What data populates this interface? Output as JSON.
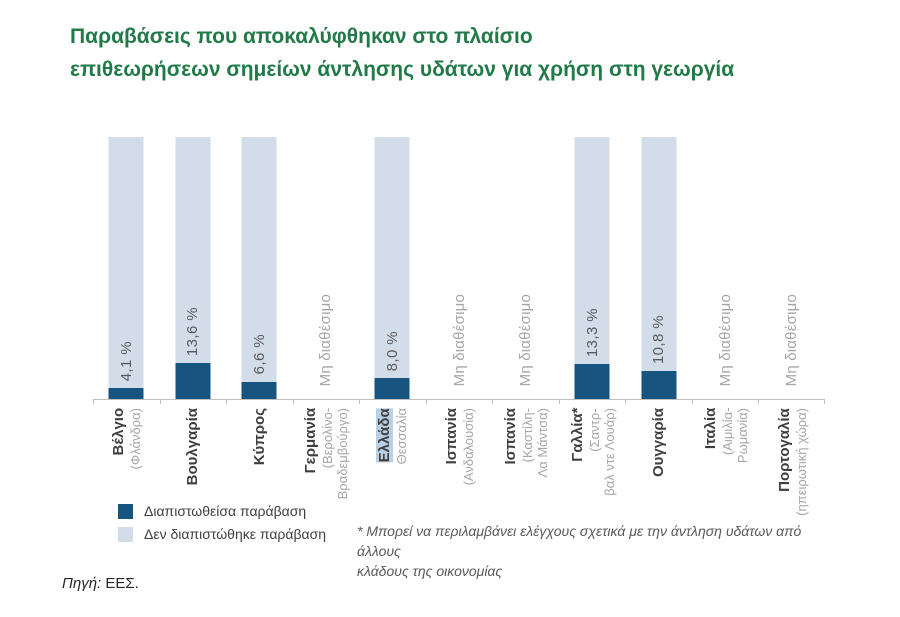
{
  "title": {
    "line1": "Παραβάσεις που αποκαλύφθηκαν στο πλαίσιο",
    "line2": "επιθεωρήσεων σημείων άντλησης υδάτων για χρήση στη γεωργία"
  },
  "chart_data": {
    "type": "bar",
    "subtype": "100-percent-stacked-column",
    "title": "Παραβάσεις που αποκαλύφθηκαν στο πλαίσιο επιθεωρήσεων σημείων άντλησης υδάτων για χρήση στη γεωργία",
    "ylim": [
      0,
      100
    ],
    "grid": false,
    "legend_position": "bottom-left",
    "na_label": "Μη διαθέσιμο",
    "categories": [
      "Βέλγιο (Φλάνδρα)",
      "Βουλγαρία",
      "Κύπρος",
      "Γερμανία (Βερολίνο-Βραδεμβούργο)",
      "Ελλάδα Θεσσαλία",
      "Ισπανία (Ανδαλουσία)",
      "Ισπανία (Καστίλη-Λα Μάντσα)",
      "Γαλλία* (Σαντρ-βαλ ντε Λουάρ)",
      "Ουγγαρία",
      "Ιταλία (Αιμιλία-Ρωμανία)",
      "Πορτογαλία (ηπειρωτική χώρα)"
    ],
    "series": [
      {
        "name": "Διαπιστωθείσα παράβαση",
        "color": "#175480",
        "values": [
          4.1,
          13.6,
          6.6,
          null,
          8.0,
          null,
          null,
          13.3,
          10.8,
          null,
          null
        ]
      },
      {
        "name": "Δεν διαπιστώθηκε παράβαση",
        "color": "#d3dde9",
        "values": [
          95.9,
          86.4,
          93.4,
          null,
          92.0,
          null,
          null,
          86.7,
          89.2,
          null,
          null
        ]
      }
    ],
    "columns": [
      {
        "country": "Βέλγιο",
        "region_lines": [
          "(Φλάνδρα)"
        ],
        "value": 4.1,
        "value_label": "4,1 %",
        "highlight": false
      },
      {
        "country": "Βουλγαρία",
        "region_lines": [],
        "value": 13.6,
        "value_label": "13,6 %",
        "highlight": false
      },
      {
        "country": "Κύπρος",
        "region_lines": [],
        "value": 6.6,
        "value_label": "6,6 %",
        "highlight": false
      },
      {
        "country": "Γερμανία",
        "region_lines": [
          "(Βερολίνο-",
          "Βραδεμβούργο)"
        ],
        "value": null,
        "value_label": null,
        "highlight": false
      },
      {
        "country": "Ελλάδα",
        "region_lines": [
          "Θεσσαλία"
        ],
        "value": 8.0,
        "value_label": "8,0 %",
        "highlight": true
      },
      {
        "country": "Ισπανία",
        "region_lines": [
          "(Ανδαλουσία)"
        ],
        "value": null,
        "value_label": null,
        "highlight": false
      },
      {
        "country": "Ισπανία",
        "region_lines": [
          "(Καστίλη-",
          "Λα Μάντσα)"
        ],
        "value": null,
        "value_label": null,
        "highlight": false
      },
      {
        "country": "Γαλλία*",
        "region_lines": [
          "(Σαντρ-",
          "βαλ ντε Λουάρ)"
        ],
        "value": 13.3,
        "value_label": "13,3 %",
        "highlight": false
      },
      {
        "country": "Ουγγαρία",
        "region_lines": [],
        "value": 10.8,
        "value_label": "10,8 %",
        "highlight": false
      },
      {
        "country": "Ιταλία",
        "region_lines": [
          "(Αιμιλία-",
          "Ρωμανία)"
        ],
        "value": null,
        "value_label": null,
        "highlight": false
      },
      {
        "country": "Πορτογαλία",
        "region_lines": [
          "(ηπειρωτική χώρα)"
        ],
        "value": null,
        "value_label": null,
        "highlight": false
      }
    ]
  },
  "legend": {
    "items": [
      {
        "label": "Διαπιστωθείσα παράβαση",
        "color": "#175480"
      },
      {
        "label": "Δεν διαπιστώθηκε παράβαση",
        "color": "#d3dde9"
      }
    ]
  },
  "footnote": {
    "line1": "* Μπορεί να περιλαμβάνει ελέγχους σχετικά με την άντληση υδάτων από άλλους",
    "line2": "κλάδους της οικονομίας"
  },
  "source": {
    "prefix": "Πηγή:",
    "text": "ΕΕΣ."
  },
  "colors": {
    "title_green": "#217a47",
    "violation_blue": "#175480",
    "no_violation_blue": "#d3dde9",
    "greece_highlight": "#b8cfe4",
    "axis_gray": "#bfbfbf",
    "value_text": "#595959",
    "muted_text": "#a6a6a6"
  }
}
